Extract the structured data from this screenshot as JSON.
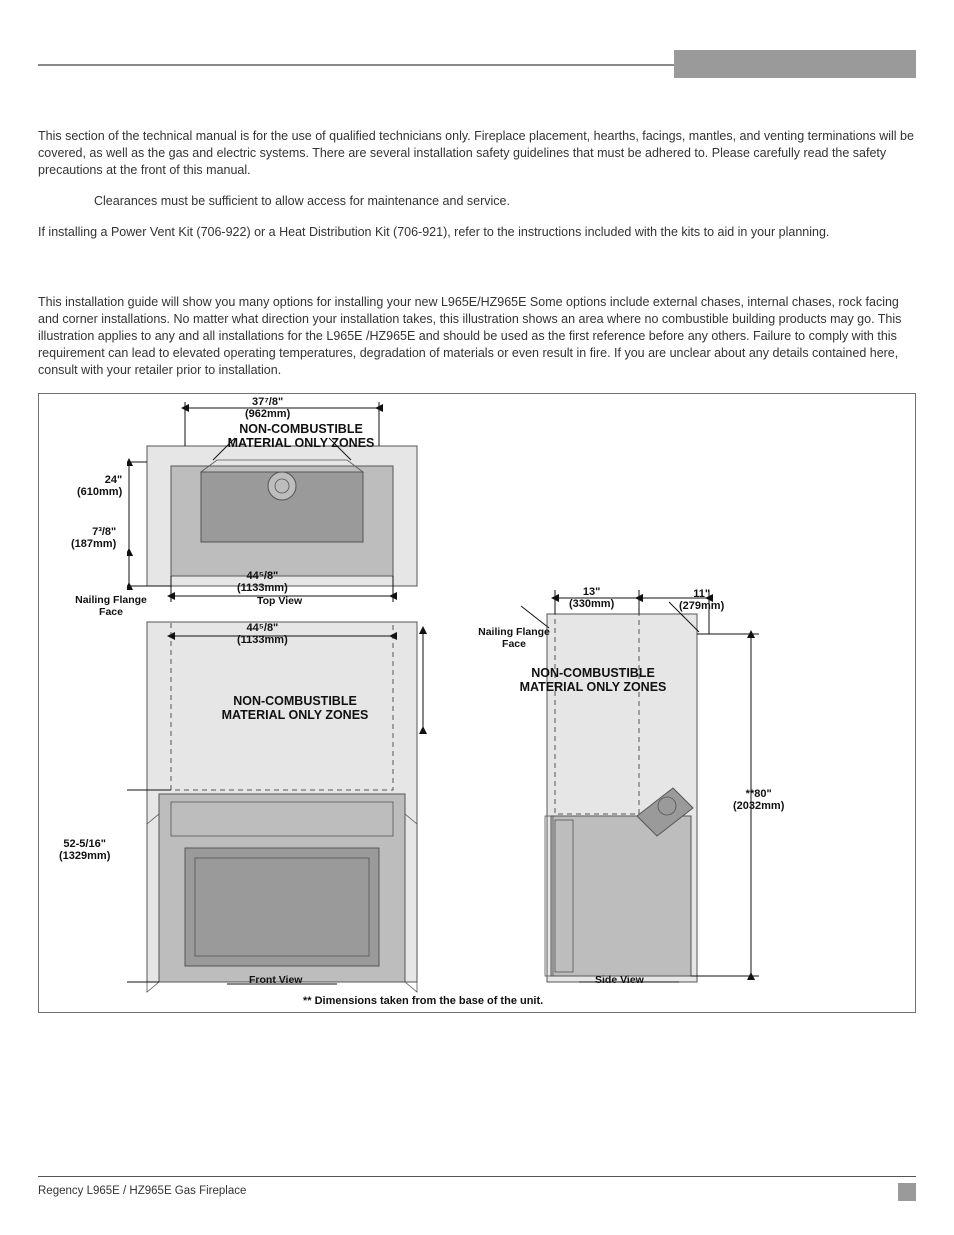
{
  "header": {
    "tab_color": "#9a9a9a",
    "rule_color": "#8a8a8a"
  },
  "intro": {
    "p1": "This section of the technical manual is for the use of qualified technicians only. Fireplace placement, hearths, facings, mantles, and venting terminations will be covered, as well as the gas and electric systems. There are several installation safety guidelines that must be adhered to. Please carefully read the safety precautions at the front of this manual.",
    "note": "Clearances must be sufficient to allow access for maintenance and service.",
    "p2": "If installing a Power Vent Kit (706-922) or a Heat Distribution Kit (706-921), refer to the instructions included with the kits to aid in your planning."
  },
  "guide": {
    "p1": "This installation guide will show you many options for installing your new L965E/HZ965E Some options include external chases, internal chases, rock facing and corner installations. No matter what direction your installation takes, this illustration shows an area where no combustible building products may go. This illustration applies to any and all installations for the L965E /HZ965E  and should be used as the first reference before any others. Failure to comply with this requirement can lead to elevated operating temperatures, degradation of materials or even result in fire. If you are unclear about any details contained here, consult with your retailer prior to installation."
  },
  "diagram": {
    "zones_top": "NON-COMBUSTIBLE\nMATERIAL ONLY ZONES",
    "zones_front": "NON-COMBUSTIBLE\nMATERIAL ONLY ZONES",
    "zones_side": "NON-COMBUSTIBLE\nMATERIAL ONLY ZONES",
    "top_view_label": "Top View",
    "front_view_label": "Front View",
    "side_view_label": "Side View",
    "nailing_flange_left": "Nailing Flange\nFace",
    "nailing_flange_right": "Nailing Flange\nFace",
    "dim_37_78": "37⁷/8\"\n(962mm)",
    "dim_24": "24\"\n(610mm)",
    "dim_7_38": "7³/8\"\n(187mm)",
    "dim_44_58_a": "44⁵/8\"\n(1133mm)",
    "dim_44_58_b": "44⁵/8\"\n(1133mm)",
    "dim_52_5_16": "52-5/16\"\n(1329mm)",
    "dim_13": "13\"\n(330mm)",
    "dim_11": "11\"\n(279mm)",
    "dim_80": "**80\"\n(2032mm)",
    "footnote": "** Dimensions taken from the base of the unit.",
    "colors": {
      "zone_fill": "#e6e6e6",
      "unit_fill": "#bdbdbd",
      "dark_fill": "#9a9a9a",
      "stroke": "#555555",
      "dim_stroke": "#111111"
    }
  },
  "footer": {
    "product": "Regency L965E / HZ965E Gas Fireplace"
  }
}
